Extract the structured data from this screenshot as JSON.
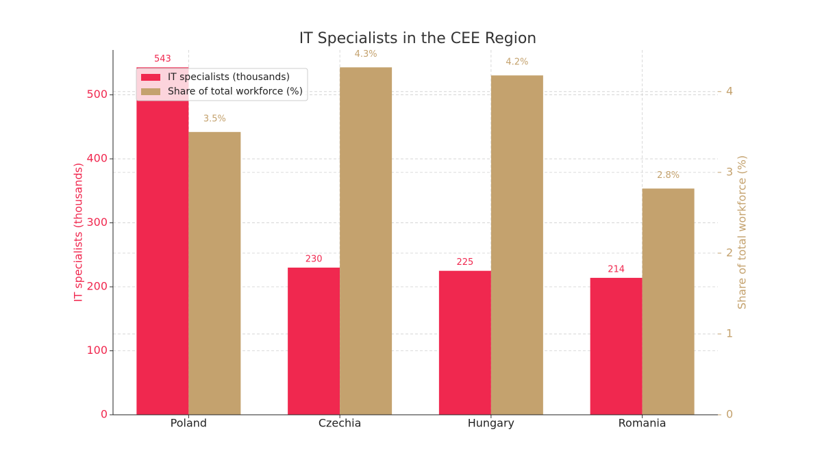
{
  "chart_data": {
    "type": "bar",
    "title": "IT Specialists in the CEE Region",
    "categories": [
      "Poland",
      "Czechia",
      "Hungary",
      "Romania"
    ],
    "series": [
      {
        "name": "IT specialists (thousands)",
        "color": "#f0284f",
        "values": [
          543,
          230,
          225,
          214
        ]
      },
      {
        "name": "Share of total workforce (%)",
        "color": "#c4a26e",
        "values": [
          3.5,
          4.3,
          4.2,
          2.8
        ],
        "value_labels": [
          "3.5%",
          "4.3%",
          "4.2%",
          "2.8%"
        ],
        "axis": "y2"
      }
    ],
    "ylabel": "IT specialists (thousands)",
    "y2label": "Share of total workforce (%)",
    "ylim": [
      0,
      570.15
    ],
    "yticks": [
      0,
      100,
      200,
      300,
      400,
      500
    ],
    "y2lim": [
      0,
      4.515
    ],
    "y2ticks": [
      0,
      1,
      2,
      3,
      4
    ],
    "grid": true,
    "legend": "upper left"
  }
}
